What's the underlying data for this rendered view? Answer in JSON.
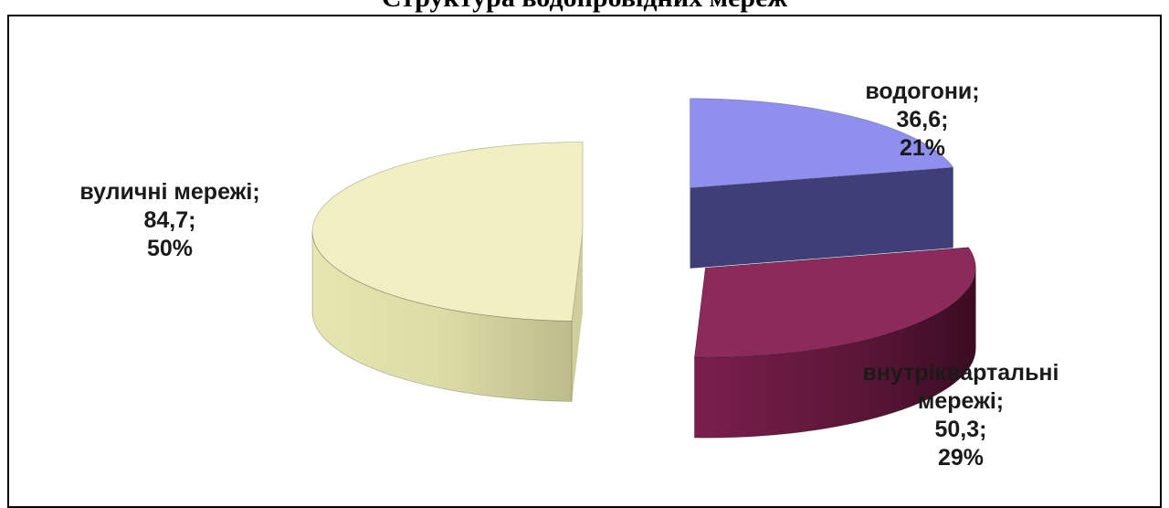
{
  "page": {
    "title": "Структура водопровідних мереж"
  },
  "chart_data": {
    "type": "pie",
    "title": "Структура водопровідних мереж",
    "three_d": true,
    "exploded": true,
    "slices": [
      {
        "name": "водогони",
        "value": 36.6,
        "percent": 21,
        "value_label": "36,6;",
        "percent_label": "21%",
        "label_lines": [
          "водогони;",
          "36,6;",
          "21%"
        ],
        "top_color": "#8F8FEF",
        "side_color": "#3F3F78"
      },
      {
        "name": "внутріквартальні мережі",
        "value": 50.3,
        "percent": 29,
        "value_label": "50,3;",
        "percent_label": "29%",
        "label_lines": [
          "внутріквартальні",
          "мережі;",
          "50,3;",
          "29%"
        ],
        "top_color": "#8B2A5B",
        "side_color": "#4F1230"
      },
      {
        "name": "вуличні мережі",
        "value": 84.7,
        "percent": 50,
        "value_label": "84,7;",
        "percent_label": "50%",
        "label_lines": [
          "вуличні мережі;",
          "84,7;",
          "50%"
        ],
        "top_color": "#F0F0C2",
        "side_color": "#CFCF9E"
      }
    ]
  }
}
